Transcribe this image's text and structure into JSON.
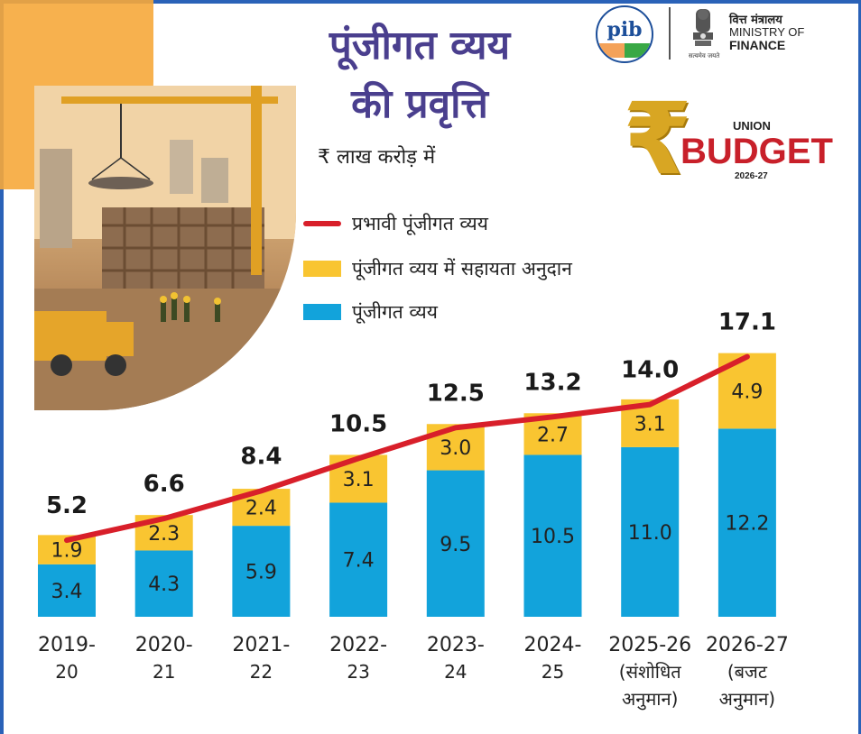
{
  "header": {
    "title_line1": "पूंजीगत व्यय",
    "title_line2": "की प्रवृत्ति",
    "unit": "₹ लाख करोड़ में"
  },
  "logos": {
    "pib": "pib",
    "ministry_hindi": "वित्त मंत्रालय",
    "ministry_english_1": "MINISTRY OF",
    "ministry_english_2": "FINANCE",
    "emblem_caption": "सत्यमेव जयते",
    "budget_union": "UNION",
    "budget_word": "BUDGET",
    "budget_year": "2026-27",
    "rupee": "₹"
  },
  "chart_data": {
    "type": "bar",
    "stacked": true,
    "categories": [
      [
        "2019-",
        "20"
      ],
      [
        "2020-",
        "21"
      ],
      [
        "2021-",
        "22"
      ],
      [
        "2022-",
        "23"
      ],
      [
        "2023-",
        "24"
      ],
      [
        "2024-",
        "25"
      ],
      [
        "2025-26",
        "(संशोधित",
        "अनुमान)"
      ],
      [
        "2026-27",
        "(बजट",
        "अनुमान)"
      ]
    ],
    "series": [
      {
        "name": "पूंजीगत व्यय",
        "color": "#12a3db",
        "values": [
          3.4,
          4.3,
          5.9,
          7.4,
          9.5,
          10.5,
          11.0,
          12.2
        ],
        "labels": [
          "3.4",
          "4.3",
          "5.9",
          "7.4",
          "9.5",
          "10.5",
          "11.0",
          "12.2"
        ]
      },
      {
        "name": "पूंजीगत व्यय में सहायता अनुदान",
        "color": "#f9c531",
        "values": [
          1.9,
          2.3,
          2.4,
          3.1,
          3.0,
          2.7,
          3.1,
          4.9
        ],
        "labels": [
          "1.9",
          "2.3",
          "2.4",
          "3.1",
          "3.0",
          "2.7",
          "3.1",
          "4.9"
        ]
      }
    ],
    "line": {
      "name": "प्रभावी पूंजीगत व्यय",
      "color": "#d81f2a",
      "values": [
        5.2,
        6.6,
        8.4,
        10.5,
        12.5,
        13.2,
        14.0,
        17.1
      ],
      "labels": [
        "5.2",
        "6.6",
        "8.4",
        "10.5",
        "12.5",
        "13.2",
        "14.0",
        "17.1"
      ]
    },
    "ylim": [
      0,
      19
    ],
    "grid": false,
    "legend_position": "top-center"
  }
}
